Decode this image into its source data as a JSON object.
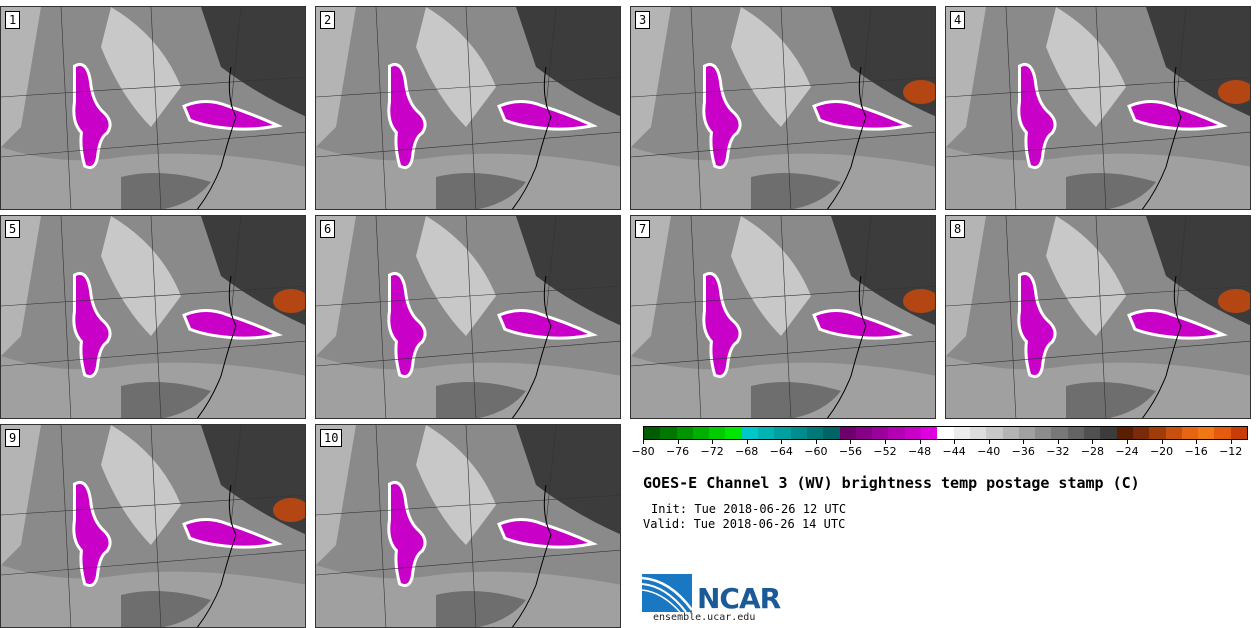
{
  "panels": [
    {
      "label": "1"
    },
    {
      "label": "2"
    },
    {
      "label": "3"
    },
    {
      "label": "4"
    },
    {
      "label": "5"
    },
    {
      "label": "6"
    },
    {
      "label": "7"
    },
    {
      "label": "8"
    },
    {
      "label": "9"
    },
    {
      "label": "10"
    }
  ],
  "colorbar": {
    "colors": [
      "#005c00",
      "#007800",
      "#009400",
      "#00b000",
      "#00cc00",
      "#00e600",
      "#00c8c8",
      "#00b4b4",
      "#00a0a0",
      "#008c8c",
      "#007878",
      "#006464",
      "#6e006e",
      "#850085",
      "#9b009b",
      "#b200b2",
      "#c800c8",
      "#df00df",
      "#ffffff",
      "#ececec",
      "#dcdcdc",
      "#c8c8c8",
      "#b4b4b4",
      "#a0a0a0",
      "#8c8c8c",
      "#787878",
      "#646464",
      "#505050",
      "#3c3c3c",
      "#5a1e00",
      "#7a2a08",
      "#a03c0a",
      "#c8500f",
      "#e66414",
      "#f07814",
      "#e65a10",
      "#c83c0a"
    ],
    "ticks": [
      "−80",
      "−76",
      "−72",
      "−68",
      "−64",
      "−60",
      "−56",
      "−52",
      "−48",
      "−44",
      "−40",
      "−36",
      "−32",
      "−28",
      "−24",
      "−20",
      "−16",
      "−12"
    ],
    "range": [
      -80,
      -10
    ]
  },
  "title": "GOES-E Channel 3 (WV) brightness temp postage stamp (C)",
  "init": "Init: Tue 2018-06-26 12 UTC",
  "valid": "Valid: Tue 2018-06-26 14 UTC",
  "logo": {
    "text": "NCAR",
    "site": "ensemble.ucar.edu",
    "color": "#1a5a96"
  }
}
